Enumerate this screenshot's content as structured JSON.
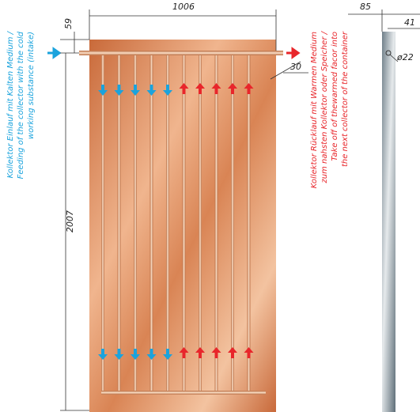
{
  "dimensions": {
    "width": "1006",
    "height": "2007",
    "header_offset": "59",
    "pipe_overhang": "30",
    "depth": "85",
    "profile_width": "41",
    "pipe_diameter": "ø22"
  },
  "labels": {
    "intake": [
      "Kollektor Einlauf mit Kalten Medium /",
      "Feeding of the collector with the cold",
      "working substance (intake)"
    ],
    "return": [
      "Kollektor Rücklauf mit Warmen Medium",
      "zum nahsten Kollektor oder Speicher /",
      "Take off of thewarmed facor into",
      "the next collector of the container"
    ]
  }
}
